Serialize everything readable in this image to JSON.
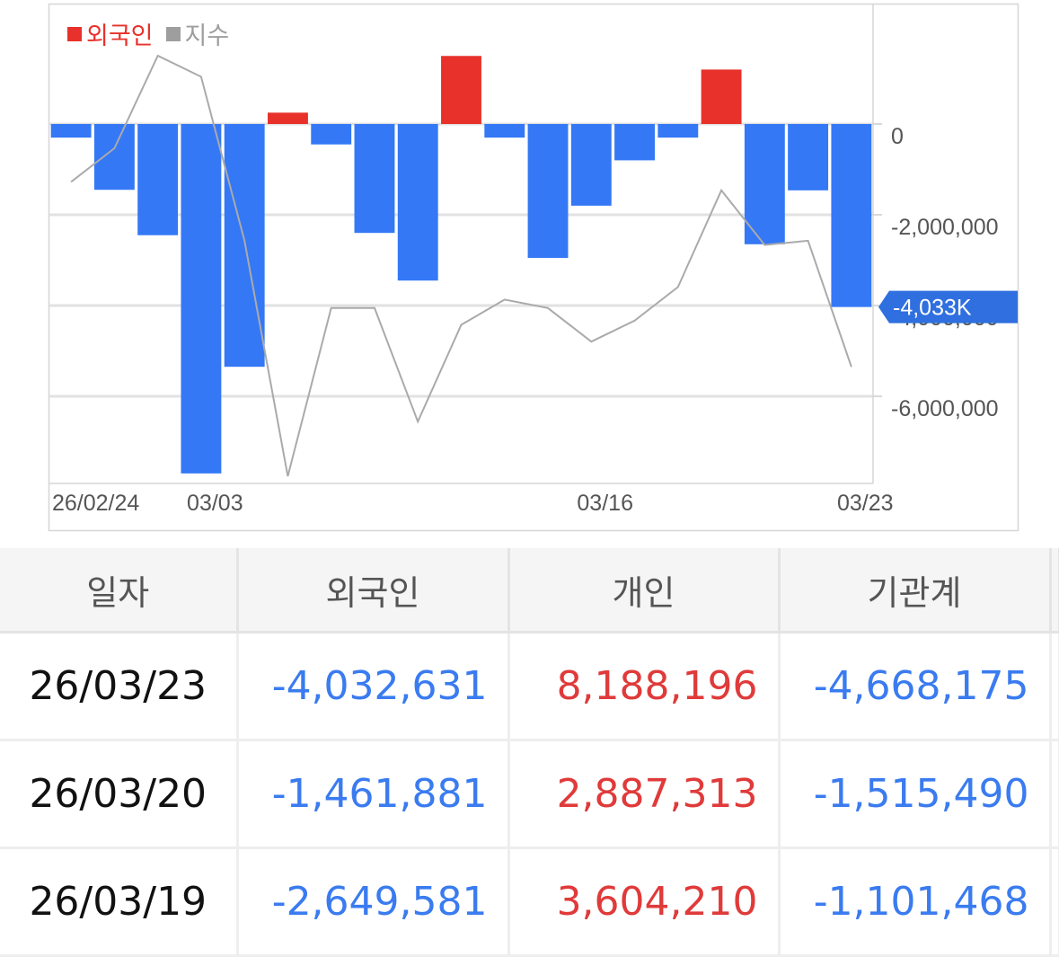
{
  "legend": [
    {
      "label": "외국인",
      "color": "#e8312b",
      "text_color": "#e8312b"
    },
    {
      "label": "지수",
      "color": "#9e9e9e",
      "text_color": "#9e9e9e"
    }
  ],
  "chart_data": {
    "type": "bar",
    "series": [
      {
        "name": "외국인",
        "kind": "bar",
        "positive_color": "#e8312b",
        "negative_color": "#3478f6",
        "values": [
          -300000,
          -1450000,
          -2450000,
          -7700000,
          -5350000,
          250000,
          -450000,
          -2400000,
          -3450000,
          1500000,
          -300000,
          -2950000,
          -1800000,
          -800000,
          -300000,
          1200000,
          -2649581,
          -1461881,
          -4032631
        ]
      },
      {
        "name": "지수",
        "kind": "line",
        "color": "#aaaaaa",
        "values": [
          0.7,
          0.78,
          1.0,
          0.95,
          0.56,
          0.0,
          0.4,
          0.4,
          0.13,
          0.36,
          0.42,
          0.4,
          0.32,
          0.37,
          0.45,
          0.68,
          0.55,
          0.56,
          0.26
        ]
      }
    ],
    "ylim": [
      -7800000,
      2600000
    ],
    "y_ticks": [
      {
        "value": 0,
        "label": "0"
      },
      {
        "value": -2000000,
        "label": "-2,000,000"
      },
      {
        "value": -4000000,
        "label": "-4,000,000"
      },
      {
        "value": -6000000,
        "label": "-6,000,000"
      }
    ],
    "x_labels": [
      {
        "index": 0,
        "label": "26/02/24"
      },
      {
        "index": 4,
        "label": "03/03"
      },
      {
        "index": 13,
        "label": "03/16"
      },
      {
        "index": 19,
        "label": "03/23"
      }
    ],
    "last_value_label": "-4,033K",
    "last_value_color": "#2f6fdf"
  },
  "table": {
    "headers": [
      "일자",
      "외국인",
      "개인",
      "기관계"
    ],
    "rows": [
      [
        "26/03/23",
        "-4,032,631",
        "8,188,196",
        "-4,668,175"
      ],
      [
        "26/03/20",
        "-1,461,881",
        "2,887,313",
        "-1,515,490"
      ],
      [
        "26/03/19",
        "-2,649,581",
        "3,604,210",
        "-1,101,468"
      ]
    ]
  }
}
